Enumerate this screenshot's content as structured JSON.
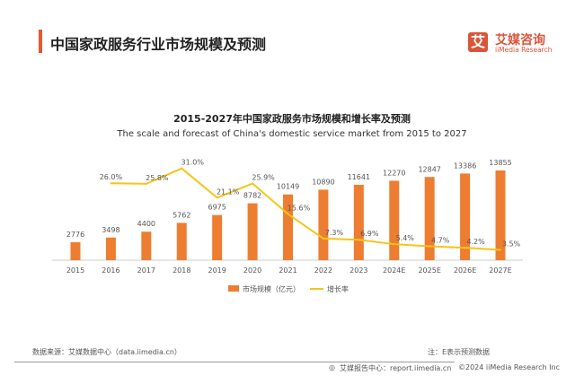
{
  "header": {
    "title": "中国家政服务行业市场规模及预测"
  },
  "logo": {
    "mark": "艾",
    "name_cn": "艾媒咨询",
    "name_en": "iiMedia Research"
  },
  "colors": {
    "accent": "#e8572a",
    "bar": "#ed7d31",
    "line": "#f5c518"
  },
  "chart_data": {
    "type": "bar+line",
    "title": "2015-2027年中国家政服务市场规模和增长率及预测",
    "subtitle": "The scale and forecast of China's domestic service market from 2015 to 2027",
    "categories": [
      "2015",
      "2016",
      "2017",
      "2018",
      "2019",
      "2020",
      "2021",
      "2022",
      "2023",
      "2024E",
      "2025E",
      "2026E",
      "2027E"
    ],
    "series": [
      {
        "name": "市场规模（亿元）",
        "type": "bar",
        "values": [
          2776,
          3498,
          4400,
          5762,
          6975,
          8782,
          10149,
          10890,
          11641,
          12270,
          12847,
          13386,
          13855
        ],
        "labels": [
          "2776",
          "3498",
          "4400",
          "5762",
          "6975",
          "8782",
          "10149",
          "10890",
          "11641",
          "12270",
          "12847",
          "13386",
          "13855"
        ]
      },
      {
        "name": "增长率",
        "type": "line",
        "values": [
          null,
          26.0,
          25.8,
          31.0,
          21.1,
          25.9,
          15.6,
          7.3,
          6.9,
          5.4,
          4.7,
          4.2,
          3.5
        ],
        "labels": [
          null,
          "26.0%",
          "25.8%",
          "31.0%",
          "21.1%",
          "25.9%",
          "15.6%",
          "7.3%",
          "6.9%",
          "5.4%",
          "4.7%",
          "4.2%",
          "3.5%"
        ]
      }
    ],
    "legend": "bottom",
    "grid": false
  },
  "footer": {
    "source": "数据来源：艾媒数据中心（data.iimedia.cn）",
    "note": "注：E表示预测数据",
    "report": "艾媒报告中心：report.iimedia.cn",
    "copyright": "©2024  iiMedia Research  Inc"
  }
}
